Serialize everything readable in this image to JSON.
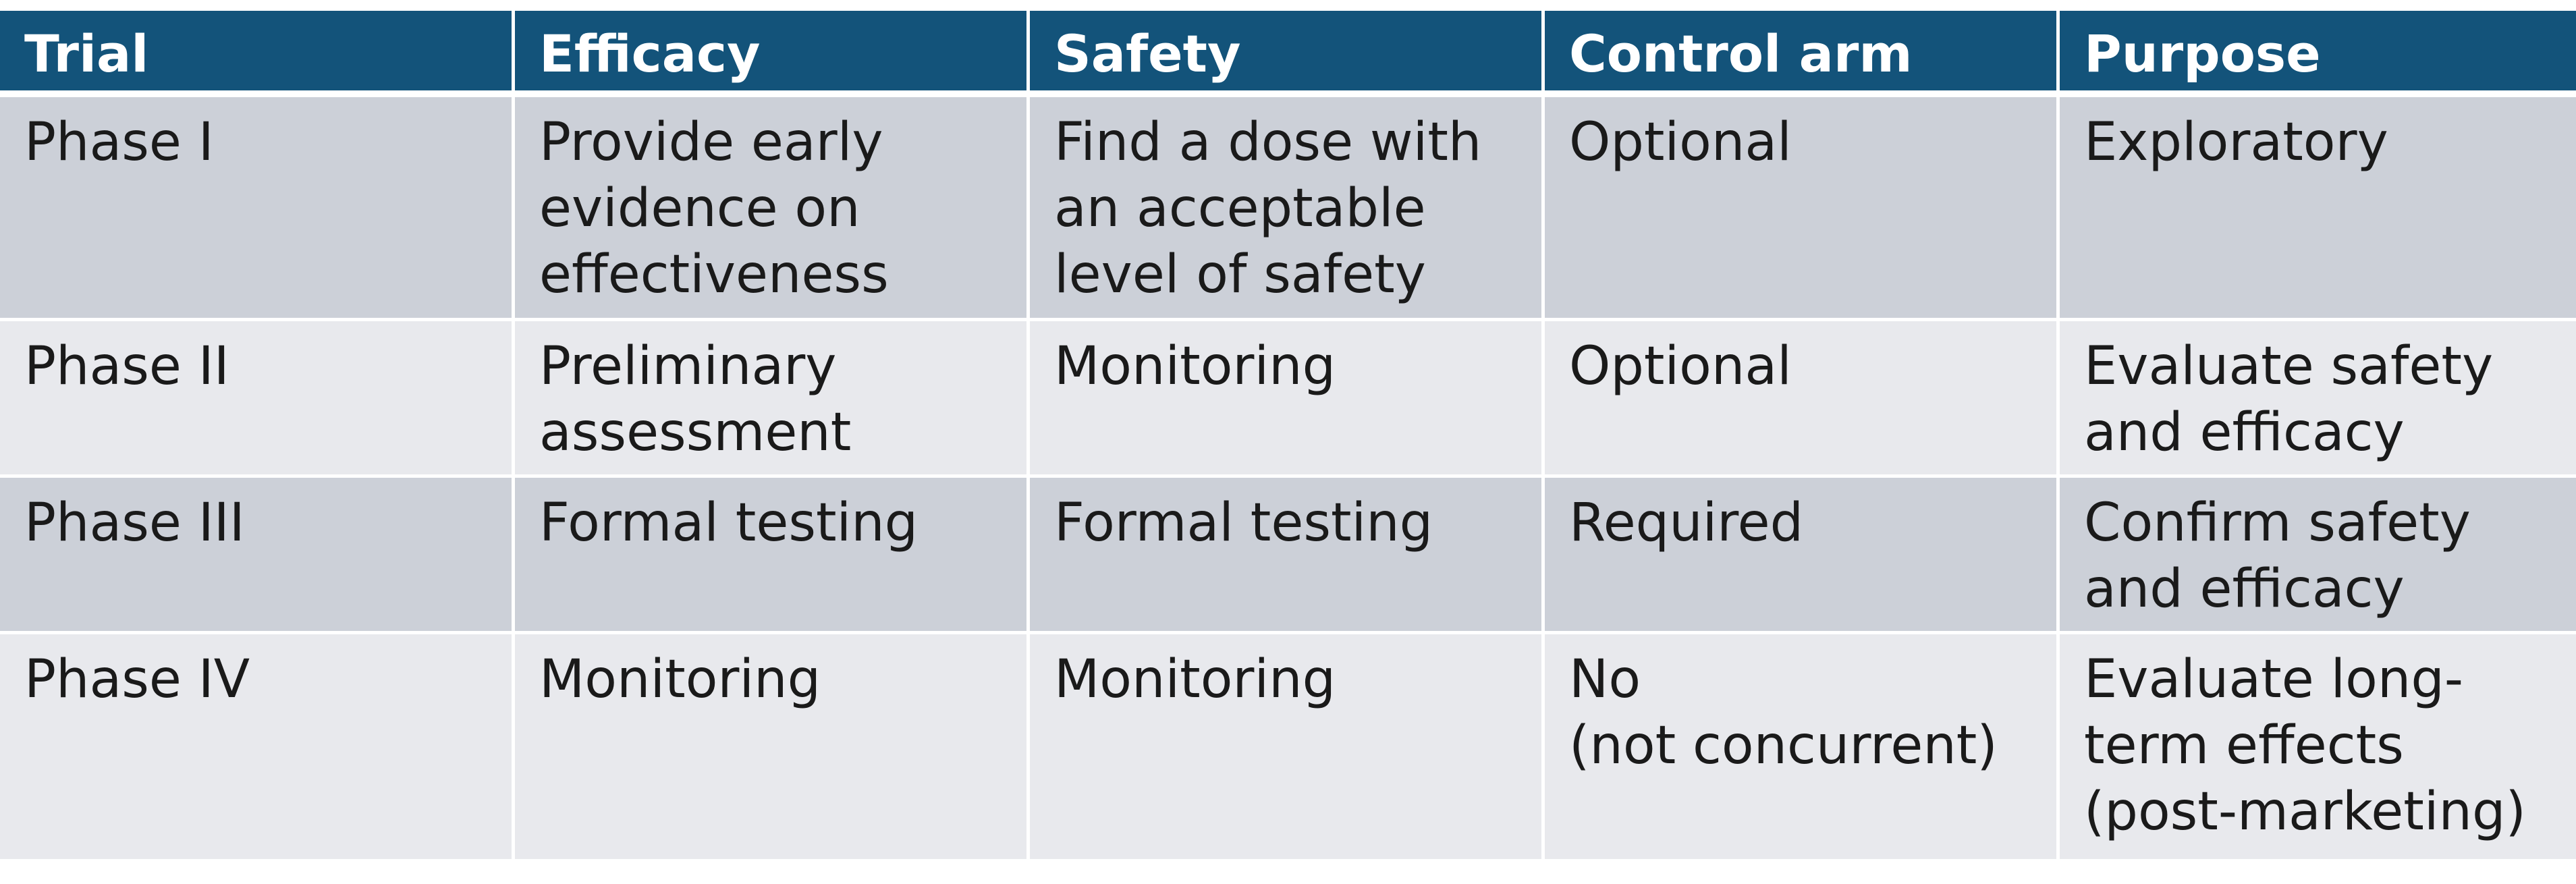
{
  "table": {
    "headers": [
      "Trial",
      "Efficacy",
      "Safety",
      "Control arm",
      "Purpose"
    ],
    "rows": [
      [
        "Phase I",
        "Provide early\nevidence on\neffectiveness",
        "Find a dose with\nan acceptable\nlevel of safety",
        "Optional",
        "Exploratory"
      ],
      [
        "Phase II",
        "Preliminary\nassessment",
        "Monitoring",
        "Optional",
        "Evaluate safety\nand efficacy"
      ],
      [
        "Phase III",
        "Formal testing",
        "Formal testing",
        "Required",
        "Confirm safety\nand efficacy"
      ],
      [
        "Phase IV",
        "Monitoring",
        "Monitoring",
        "No\n(not concurrent)",
        "Evaluate long-\nterm effects\n(post-marketing)"
      ]
    ]
  },
  "colors": {
    "header_bg": "#13537a",
    "header_text": "#ffffff",
    "row_dark": "#ccd0d8",
    "row_light": "#e8e9ed",
    "cell_text": "#1a1a1a"
  }
}
